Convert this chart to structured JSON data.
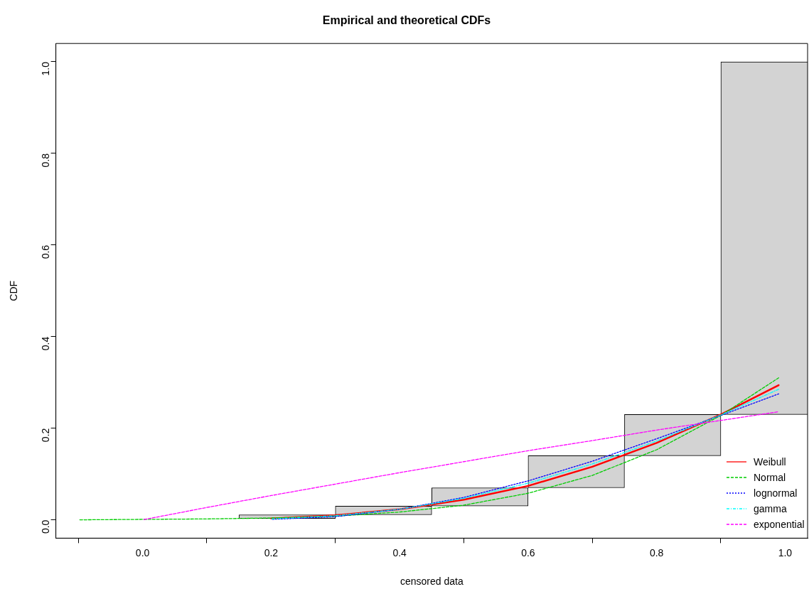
{
  "chart_data": {
    "type": "line",
    "title": "Empirical and theoretical CDFs",
    "xlabel": "censored data",
    "ylabel": "CDF",
    "x": [
      -0.1,
      0,
      0.1,
      0.2,
      0.3,
      0.4,
      0.5,
      0.6,
      0.7,
      0.8,
      0.9,
      0.99
    ],
    "series": [
      {
        "type": "bar",
        "color": "#d3d3d3",
        "x": [
          0.225,
          0.375,
          0.525,
          0.675,
          0.825,
          0.975
        ],
        "base": [
          0.003,
          0.011,
          0.03,
          0.07,
          0.14,
          0.23
        ],
        "values": [
          0.008,
          0.019,
          0.04,
          0.07,
          0.09,
          0.77
        ]
      },
      {
        "name": "Weibull",
        "color": "#ff0000",
        "line_style": "solid",
        "values": [
          null,
          null,
          null,
          0.003,
          0.01,
          0.023,
          0.044,
          0.074,
          0.116,
          0.168,
          0.23,
          0.294
        ]
      },
      {
        "name": "Normal",
        "color": "#00cd00",
        "line_style": "dashed",
        "values": [
          0,
          0.001,
          0.002,
          0.004,
          0.008,
          0.017,
          0.032,
          0.058,
          0.097,
          0.153,
          0.228,
          0.31
        ]
      },
      {
        "name": "lognormal",
        "color": "#0000ff",
        "line_style": "dotted",
        "values": [
          null,
          null,
          null,
          0.001,
          0.007,
          0.023,
          0.049,
          0.085,
          0.128,
          0.177,
          0.228,
          0.275
        ]
      },
      {
        "name": "gamma",
        "color": "#00ffff",
        "line_style": "dashdot",
        "values": [
          null,
          null,
          null,
          0.002,
          0.009,
          0.023,
          0.047,
          0.08,
          0.122,
          0.172,
          0.229,
          0.285
        ]
      },
      {
        "name": "exponential",
        "color": "#ff00ff",
        "line_style": "dashed",
        "values": [
          null,
          0,
          0.027,
          0.053,
          0.078,
          0.103,
          0.127,
          0.151,
          0.173,
          0.196,
          0.217,
          0.236
        ]
      }
    ],
    "xlim": [
      -0.135,
      1.035
    ],
    "ylim": [
      -0.04,
      1.04
    ],
    "xticks": [
      {
        "value": 0,
        "label": "0.0"
      },
      {
        "value": 0.2,
        "label": "0.2"
      },
      {
        "value": 0.4,
        "label": "0.4"
      },
      {
        "value": 0.6,
        "label": "0.6"
      },
      {
        "value": 0.8,
        "label": "0.8"
      },
      {
        "value": 1,
        "label": "1.0"
      }
    ],
    "yticks": [
      {
        "value": 0,
        "label": "0.0"
      },
      {
        "value": 0.2,
        "label": "0.2"
      },
      {
        "value": 0.4,
        "label": "0.4"
      },
      {
        "value": 0.6,
        "label": "0.6"
      },
      {
        "value": 0.8,
        "label": "0.8"
      },
      {
        "value": 1,
        "label": "1.0"
      }
    ],
    "grid": false,
    "legend": "bottom right",
    "marker": "none"
  }
}
